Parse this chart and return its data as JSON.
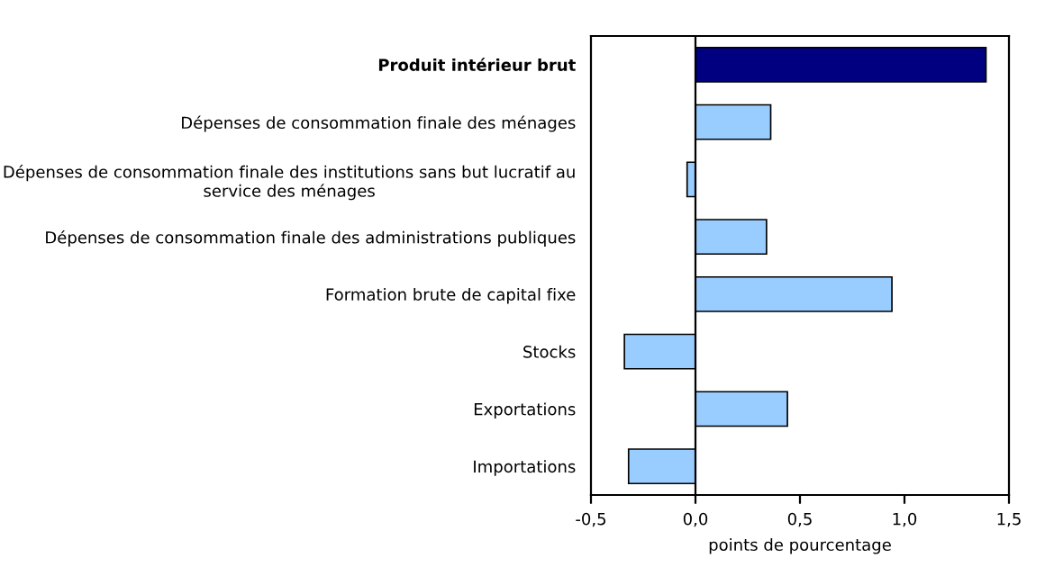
{
  "chart_data": {
    "type": "bar",
    "orientation": "horizontal",
    "xlabel": "points de pourcentage",
    "categories": [
      "Produit intérieur brut",
      "Dépenses de consommation finale des ménages",
      "Dépenses de consommation finale des institutions sans but lucratif au service des ménages",
      "Dépenses de consommation finale des administrations publiques",
      "Formation brute de capital fixe",
      "Stocks",
      "Exportations",
      "Importations"
    ],
    "values": [
      1.39,
      0.36,
      -0.04,
      0.34,
      0.94,
      -0.34,
      0.44,
      -0.32
    ],
    "colors": [
      "#000080",
      "#99ccff",
      "#99ccff",
      "#99ccff",
      "#99ccff",
      "#99ccff",
      "#99ccff",
      "#99ccff"
    ],
    "xlim": [
      -0.5,
      1.5
    ],
    "xticks": [
      {
        "value": -0.5,
        "label": "-0,5"
      },
      {
        "value": 0,
        "label": "0,0"
      },
      {
        "value": 0.5,
        "label": "0,5"
      },
      {
        "value": 1.0,
        "label": "1,0"
      },
      {
        "value": 1.5,
        "label": "1,5"
      }
    ],
    "ref_lines": [
      {
        "axis": "x",
        "value": 0,
        "color": "#000000"
      }
    ]
  }
}
